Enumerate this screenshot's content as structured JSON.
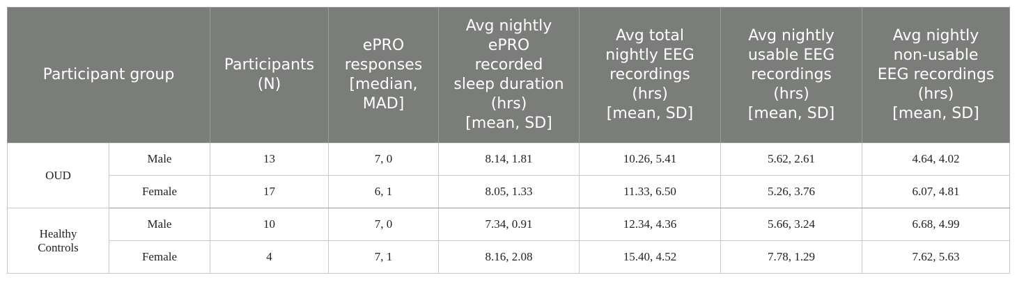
{
  "header": {
    "group": "Participant group",
    "participants": [
      "Participants",
      "(N)"
    ],
    "epro_responses": [
      "ePRO",
      "responses",
      "[median,",
      "MAD]"
    ],
    "epro_duration": [
      "Avg nightly",
      "ePRO",
      "recorded",
      "sleep duration",
      "(hrs)",
      "[mean, SD]"
    ],
    "total_eeg": [
      "Avg total",
      "nightly EEG",
      "recordings",
      "(hrs)",
      "[mean, SD]"
    ],
    "usable_eeg": [
      "Avg nightly",
      "usable EEG",
      "recordings",
      "(hrs)",
      "[mean, SD]"
    ],
    "nonusable_eeg": [
      "Avg nightly",
      "non-usable",
      "EEG recordings",
      "(hrs)",
      "[mean, SD]"
    ]
  },
  "groups": [
    {
      "name": [
        "OUD"
      ],
      "rows": [
        {
          "sex": "Male",
          "n": "13",
          "epro": "7, 0",
          "duration": "8.14, 1.81",
          "total": "10.26, 5.41",
          "usable": "5.62, 2.61",
          "nonusable": "4.64, 4.02"
        },
        {
          "sex": "Female",
          "n": "17",
          "epro": "6, 1",
          "duration": "8.05, 1.33",
          "total": "11.33, 6.50",
          "usable": "5.26, 3.76",
          "nonusable": "6.07, 4.81"
        }
      ]
    },
    {
      "name": [
        "Healthy",
        "Controls"
      ],
      "rows": [
        {
          "sex": "Male",
          "n": "10",
          "epro": "7, 0",
          "duration": "7.34, 0.91",
          "total": "12.34, 4.36",
          "usable": "5.66, 3.24",
          "nonusable": "6.68, 4.99"
        },
        {
          "sex": "Female",
          "n": "4",
          "epro": "7, 1",
          "duration": "8.16, 2.08",
          "total": "15.40, 4.52",
          "usable": "7.78, 1.29",
          "nonusable": "7.62, 5.63"
        }
      ]
    }
  ]
}
